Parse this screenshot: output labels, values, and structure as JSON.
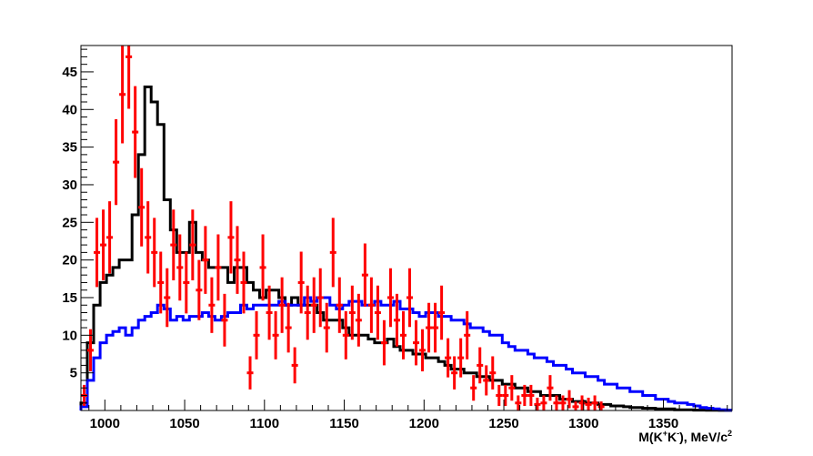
{
  "chart_data": {
    "type": "histogram",
    "title": "",
    "xlabel": {
      "base": "M(K",
      "sup1": "+",
      "mid": "K",
      "sup2": "-",
      "tail": "), MeV/c",
      "sup3": "2"
    },
    "ylabel": "",
    "xlim": [
      985,
      1393
    ],
    "ylim": [
      0,
      48.5
    ],
    "x_ticks": [
      1000,
      1050,
      1100,
      1150,
      1200,
      1250,
      1300,
      1350
    ],
    "y_ticks": [
      5,
      10,
      15,
      20,
      25,
      30,
      35,
      40,
      45
    ],
    "bin_start": 985,
    "bin_width": 4,
    "colors": {
      "black_hist": "#000000",
      "blue_hist": "#0000ff",
      "data_points": "#ff0000"
    },
    "series": [
      {
        "style": "step-black",
        "values": [
          1,
          9,
          14,
          17,
          18,
          19,
          20,
          20,
          26,
          34,
          43,
          41,
          38,
          28,
          24,
          21,
          21,
          25,
          21,
          20,
          19,
          19,
          19,
          17,
          19,
          19,
          17,
          16,
          15,
          16,
          16,
          15,
          14,
          15,
          14,
          14,
          14,
          13,
          12,
          12,
          12,
          11,
          10,
          10,
          10,
          9.5,
          9,
          9,
          9.5,
          8.5,
          8,
          8,
          7.5,
          7.5,
          7,
          7,
          6.5,
          6,
          5.5,
          5.5,
          5,
          5,
          4.5,
          4.5,
          4,
          4,
          3.5,
          3.5,
          3,
          3,
          2.5,
          2.5,
          2,
          2,
          2,
          1.5,
          1.5,
          1.2,
          1.2,
          1,
          1,
          0.8,
          0.8,
          0.6,
          0.6,
          0.5,
          0.4,
          0.4,
          0.3,
          0.3,
          0.2,
          0.2,
          0.2,
          0.1,
          0.1,
          0.1,
          0.05,
          0.05,
          0.02,
          0.02,
          0.01,
          0.01
        ]
      },
      {
        "style": "step-blue",
        "values": [
          0.5,
          4,
          7,
          9,
          10,
          10.5,
          11,
          10,
          11,
          12,
          12.5,
          13,
          14,
          13.5,
          12,
          12.5,
          12,
          12.5,
          12.5,
          13,
          12.5,
          12,
          12.5,
          13,
          13,
          14,
          13.5,
          14,
          14,
          14,
          14,
          14.5,
          14,
          14,
          14,
          15,
          14.5,
          15,
          15,
          14,
          13.5,
          14,
          14.5,
          14.5,
          14,
          14,
          14.5,
          14,
          14,
          14.5,
          13.5,
          13.5,
          13,
          12.5,
          13,
          13,
          12.5,
          12.5,
          12,
          12,
          11.5,
          11,
          11,
          10.5,
          10,
          10,
          9,
          8.5,
          8,
          8,
          7.5,
          7,
          7,
          6.5,
          6,
          6,
          5.5,
          5,
          5,
          4.5,
          4.5,
          4,
          3.5,
          3.5,
          3,
          3,
          2.5,
          2.5,
          2,
          2,
          1.5,
          1.5,
          1.2,
          1,
          1,
          0.8,
          0.6,
          0.4,
          0.3,
          0.2,
          0.1,
          0.05
        ]
      },
      {
        "style": "points-red",
        "x": [
          987,
          991,
          995,
          999,
          1003,
          1007,
          1011,
          1015,
          1019,
          1023,
          1027,
          1031,
          1035,
          1039,
          1043,
          1047,
          1051,
          1055,
          1059,
          1063,
          1067,
          1071,
          1075,
          1079,
          1083,
          1087,
          1091,
          1095,
          1099,
          1103,
          1107,
          1111,
          1115,
          1119,
          1123,
          1127,
          1131,
          1135,
          1139,
          1143,
          1147,
          1151,
          1155,
          1159,
          1163,
          1167,
          1171,
          1175,
          1179,
          1183,
          1187,
          1191,
          1195,
          1199,
          1203,
          1207,
          1211,
          1215,
          1219,
          1223,
          1227,
          1231,
          1235,
          1239,
          1243,
          1247,
          1251,
          1255,
          1259,
          1263,
          1267,
          1271,
          1275,
          1279,
          1283,
          1287,
          1291,
          1295,
          1299,
          1303,
          1307,
          1311
        ],
        "y": [
          2,
          8,
          21,
          22,
          23,
          33,
          42,
          47,
          37,
          27,
          23,
          21,
          17,
          15,
          22,
          19,
          17,
          22,
          16,
          20,
          14,
          19,
          12,
          23,
          20,
          17,
          5,
          10,
          19,
          13,
          10,
          14,
          11,
          6,
          17,
          13,
          14,
          15,
          11,
          21,
          14,
          10,
          13,
          12,
          18,
          14,
          13,
          9,
          15,
          12,
          10,
          15,
          9,
          8,
          11,
          11,
          13,
          7,
          5,
          7,
          10,
          3,
          6,
          4,
          5,
          2,
          2,
          3,
          1,
          2,
          2,
          0.8,
          1,
          3,
          1,
          1,
          1.5,
          0.5,
          1,
          0.8,
          1,
          0.5
        ],
        "errors": [
          1.4,
          2.8,
          4.6,
          4.7,
          4.8,
          5.7,
          6.5,
          6.9,
          6.1,
          5.2,
          4.8,
          4.6,
          4.1,
          3.9,
          4.7,
          4.4,
          4.1,
          4.7,
          4.0,
          4.5,
          3.7,
          4.4,
          3.5,
          4.8,
          4.5,
          4.1,
          2.2,
          3.2,
          4.4,
          3.6,
          3.2,
          3.7,
          3.3,
          2.4,
          4.1,
          3.6,
          3.7,
          3.9,
          3.3,
          4.6,
          3.7,
          3.2,
          3.6,
          3.5,
          4.2,
          3.7,
          3.6,
          3.0,
          3.9,
          3.5,
          3.2,
          3.9,
          3.0,
          2.8,
          3.3,
          3.3,
          3.6,
          2.6,
          2.2,
          2.6,
          3.2,
          1.7,
          2.4,
          2.0,
          2.2,
          1.4,
          1.4,
          1.7,
          1.0,
          1.4,
          1.4,
          0.9,
          1.0,
          1.7,
          1.0,
          1.0,
          1.2,
          0.7,
          1.0,
          0.9,
          1.0,
          0.7
        ]
      }
    ]
  }
}
